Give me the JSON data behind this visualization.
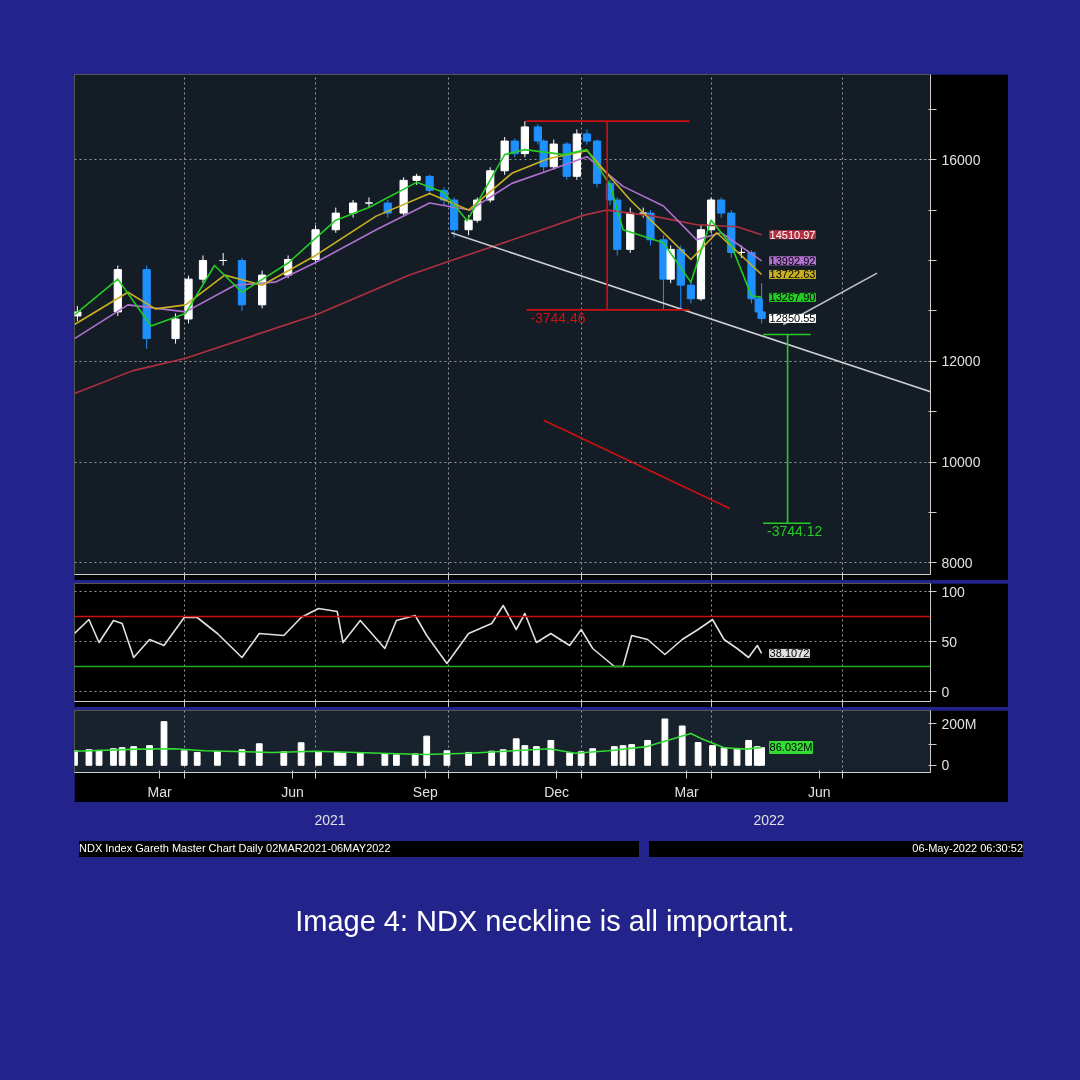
{
  "chart_data": [
    {
      "type": "candlestick",
      "xlim": [
        "2021-01-15",
        "2022-08-31"
      ],
      "ylim": [
        7770,
        17690
      ],
      "grid": true,
      "tick_labels": "y",
      "yticks": [
        8000,
        {
          "value": 9000,
          "label": null
        },
        10000,
        {
          "value": 11000,
          "label": null
        },
        12000,
        {
          "value": 13000,
          "label": null
        },
        {
          "value": 14000,
          "label": null
        },
        {
          "value": 15000,
          "label": null
        },
        16000,
        {
          "value": 17000,
          "label": null
        }
      ],
      "xticks": [
        {
          "value": "2021-04-01",
          "label": null
        },
        {
          "value": "2021-07-01",
          "label": null
        },
        {
          "value": "2021-10-01",
          "label": null
        },
        {
          "value": "2022-01-01",
          "label": null
        },
        {
          "value": "2022-04-01",
          "label": null
        },
        {
          "value": "2022-07-01",
          "label": null
        }
      ],
      "x": [
        "2021-01-17",
        "2021-02-14",
        "2021-03-06",
        "2021-03-26",
        "2021-04-04",
        "2021-04-14",
        "2021-04-28",
        "2021-05-11",
        "2021-05-25",
        "2021-06-12",
        "2021-07-01",
        "2021-07-15",
        "2021-07-27",
        "2021-08-07",
        "2021-08-20",
        "2021-08-31",
        "2021-09-09",
        "2021-09-18",
        "2021-09-28",
        "2021-10-05",
        "2021-10-15",
        "2021-10-21",
        "2021-10-30",
        "2021-11-09",
        "2021-11-16",
        "2021-11-23",
        "2021-12-02",
        "2021-12-06",
        "2021-12-13",
        "2021-12-22",
        "2021-12-29",
        "2022-01-05",
        "2022-01-12",
        "2022-01-21",
        "2022-01-26",
        "2022-02-04",
        "2022-02-13",
        "2022-02-18",
        "2022-02-27",
        "2022-03-04",
        "2022-03-11",
        "2022-03-18",
        "2022-03-25",
        "2022-04-01",
        "2022-04-08",
        "2022-04-15",
        "2022-04-22",
        "2022-04-29",
        "2022-05-04",
        "2022-05-06"
      ],
      "ohlc": [
        [
          12900,
          13100,
          12800,
          12980
        ],
        [
          12980,
          13900,
          12900,
          13820
        ],
        [
          13820,
          13900,
          12250,
          12450
        ],
        [
          12450,
          12950,
          12350,
          12840
        ],
        [
          12840,
          13700,
          12750,
          13630
        ],
        [
          13630,
          14100,
          13550,
          14000
        ],
        [
          14000,
          14150,
          13900,
          14000
        ],
        [
          14000,
          14050,
          13000,
          13120
        ],
        [
          13120,
          13800,
          13050,
          13710
        ],
        [
          13710,
          14100,
          13650,
          14020
        ],
        [
          14020,
          14700,
          13950,
          14610
        ],
        [
          14610,
          15050,
          14550,
          14940
        ],
        [
          14940,
          15200,
          14850,
          15140
        ],
        [
          15140,
          15250,
          15050,
          15140
        ],
        [
          15140,
          15200,
          14850,
          14940
        ],
        [
          14940,
          15650,
          14900,
          15590
        ],
        [
          15590,
          15720,
          15500,
          15670
        ],
        [
          15670,
          15700,
          15300,
          15390
        ],
        [
          15390,
          15450,
          15100,
          15200
        ],
        [
          15200,
          15250,
          14450,
          14610
        ],
        [
          14610,
          14900,
          14500,
          14800
        ],
        [
          14800,
          15250,
          14750,
          15200
        ],
        [
          15200,
          15850,
          15150,
          15780
        ],
        [
          15780,
          16450,
          15700,
          16370
        ],
        [
          16370,
          16420,
          16050,
          16120
        ],
        [
          16120,
          16765,
          16050,
          16650
        ],
        [
          16650,
          16700,
          16300,
          16370
        ],
        [
          16370,
          16400,
          15750,
          15860
        ],
        [
          15860,
          16400,
          15800,
          16310
        ],
        [
          16310,
          16350,
          15600,
          15670
        ],
        [
          15670,
          16600,
          15600,
          16510
        ],
        [
          16510,
          16600,
          16300,
          16370
        ],
        [
          16370,
          16400,
          15450,
          15530
        ],
        [
          15530,
          15600,
          15100,
          15200
        ],
        [
          15200,
          15250,
          14100,
          14220
        ],
        [
          14220,
          15050,
          14150,
          14940
        ],
        [
          14940,
          15050,
          14850,
          14940
        ],
        [
          14940,
          15000,
          14300,
          14410
        ],
        [
          14410,
          14500,
          13020,
          13630
        ],
        [
          13630,
          14300,
          13550,
          14220
        ],
        [
          14220,
          14300,
          13020,
          13510
        ],
        [
          13510,
          13600,
          13150,
          13240
        ],
        [
          13240,
          14700,
          13200,
          14610
        ],
        [
          14610,
          15250,
          14550,
          15200
        ],
        [
          15200,
          15250,
          14850,
          14940
        ],
        [
          14940,
          15000,
          14050,
          14160
        ],
        [
          14160,
          14300,
          14050,
          14160
        ],
        [
          14160,
          14200,
          13150,
          13240
        ],
        [
          13240,
          13300,
          12900,
          12980
        ],
        [
          12980,
          13550,
          12750,
          12850.55
        ]
      ],
      "colors": [
        "#ffffff",
        "#ffffff",
        "#1e90ff",
        "#ffffff",
        "#ffffff",
        "#ffffff",
        "#ffffff",
        "#1e90ff",
        "#ffffff",
        "#ffffff",
        "#ffffff",
        "#ffffff",
        "#ffffff",
        "#ffffff",
        "#1e90ff",
        "#ffffff",
        "#ffffff",
        "#1e90ff",
        "#1e90ff",
        "#1e90ff",
        "#ffffff",
        "#ffffff",
        "#ffffff",
        "#ffffff",
        "#1e90ff",
        "#ffffff",
        "#1e90ff",
        "#1e90ff",
        "#ffffff",
        "#1e90ff",
        "#ffffff",
        "#1e90ff",
        "#1e90ff",
        "#1e90ff",
        "#1e90ff",
        "#ffffff",
        "#ffffff",
        "#1e90ff",
        "#1e90ff",
        "#ffffff",
        "#1e90ff",
        "#1e90ff",
        "#ffffff",
        "#ffffff",
        "#1e90ff",
        "#1e90ff",
        "#ffffff",
        "#1e90ff",
        "#1e90ff",
        "#1e90ff"
      ],
      "value_labels": [
        null,
        null,
        null,
        null,
        null,
        null,
        null,
        null,
        null,
        null,
        null,
        null,
        null,
        null,
        null,
        null,
        null,
        null,
        null,
        null,
        null,
        null,
        null,
        null,
        null,
        null,
        null,
        null,
        null,
        null,
        null,
        null,
        null,
        null,
        null,
        null,
        null,
        null,
        null,
        null,
        null,
        null,
        null,
        null,
        null,
        null,
        null,
        null,
        null,
        "12850.55"
      ],
      "series": [
        {
          "type": "line",
          "color": "#b03040",
          "x": [
            "2021-01-15",
            "2021-02-24",
            "2021-04-02",
            "2021-07-01",
            "2021-09-04",
            "2021-10-03",
            "2021-12-09",
            "2022-01-03",
            "2022-01-19",
            "2022-02-20",
            "2022-03-22",
            "2022-04-19",
            "2022-05-06"
          ],
          "values": [
            11360,
            11810,
            12060,
            12920,
            13710,
            14000,
            14650,
            14900,
            15000,
            14880,
            14710,
            14670,
            14510.97
          ],
          "value_labels": [
            null,
            null,
            null,
            null,
            null,
            null,
            null,
            null,
            null,
            null,
            null,
            null,
            "14510.97"
          ]
        },
        {
          "type": "line",
          "color": "#b070d0",
          "x": [
            "2021-01-15",
            "2021-02-21",
            "2021-04-02",
            "2021-05-06",
            "2021-06-03",
            "2021-07-01",
            "2021-08-12",
            "2021-09-18",
            "2021-10-16",
            "2021-11-14",
            "2021-12-09",
            "2022-01-05",
            "2022-01-30",
            "2022-02-27",
            "2022-03-22",
            "2022-04-08",
            "2022-05-06"
          ],
          "values": [
            12450,
            13120,
            12980,
            13510,
            13570,
            13960,
            14610,
            15140,
            15000,
            15530,
            15780,
            16060,
            15470,
            15080,
            14410,
            14550,
            13992.92
          ],
          "value_labels": [
            null,
            null,
            null,
            null,
            null,
            null,
            null,
            null,
            null,
            null,
            null,
            null,
            null,
            null,
            null,
            null,
            "13992.92"
          ]
        },
        {
          "type": "line",
          "color": "#c8b020",
          "x": [
            "2021-01-15",
            "2021-02-21",
            "2021-03-12",
            "2021-04-02",
            "2021-04-29",
            "2021-05-25",
            "2021-07-01",
            "2021-08-12",
            "2021-09-18",
            "2021-10-15",
            "2021-11-14",
            "2021-12-09",
            "2022-01-05",
            "2022-02-04",
            "2022-03-18",
            "2022-04-05",
            "2022-05-06"
          ],
          "values": [
            12730,
            13370,
            13040,
            13120,
            13710,
            13510,
            14100,
            14880,
            15330,
            15000,
            15730,
            16020,
            16180,
            15200,
            14020,
            14550,
            13722.63
          ],
          "value_labels": [
            null,
            null,
            null,
            null,
            null,
            null,
            null,
            null,
            null,
            null,
            null,
            null,
            null,
            null,
            null,
            null,
            "13722.63"
          ]
        },
        {
          "type": "line",
          "color": "#22cc22",
          "x": [
            "2021-01-15",
            "2021-02-14",
            "2021-03-09",
            "2021-04-02",
            "2021-04-22",
            "2021-05-11",
            "2021-06-12",
            "2021-07-15",
            "2021-08-07",
            "2021-09-09",
            "2021-09-28",
            "2021-10-14",
            "2021-11-09",
            "2021-11-23",
            "2021-12-20",
            "2022-01-05",
            "2022-01-21",
            "2022-01-30",
            "2022-02-27",
            "2022-03-18",
            "2022-04-01",
            "2022-04-15",
            "2022-04-29",
            "2022-05-06"
          ],
          "values": [
            12920,
            13630,
            12700,
            12950,
            13900,
            13370,
            13950,
            14800,
            15050,
            15550,
            15350,
            14790,
            16100,
            16200,
            16100,
            16200,
            15500,
            14610,
            14350,
            13570,
            14800,
            14300,
            13300,
            13267.9
          ],
          "value_labels": [
            null,
            null,
            null,
            null,
            null,
            null,
            null,
            null,
            null,
            null,
            null,
            null,
            null,
            null,
            null,
            null,
            null,
            null,
            null,
            null,
            null,
            null,
            null,
            "13267.90"
          ]
        },
        {
          "type": "line",
          "color": "#d0d0d0",
          "x": [
            "2021-10-03",
            "2022-08-31"
          ],
          "values": [
            14550,
            11394
          ]
        },
        {
          "type": "line",
          "color": "#cc1111",
          "x": [
            "2021-11-24",
            "2022-03-17"
          ],
          "values": [
            16765,
            16765
          ]
        },
        {
          "type": "line",
          "color": "#cc1111",
          "x": [
            "2022-01-19",
            "2022-01-19"
          ],
          "values": [
            16765,
            13020.54
          ]
        },
        {
          "type": "line",
          "color": "#cc1111",
          "x": [
            "2021-11-24",
            "2022-03-17"
          ],
          "values": [
            13020.54,
            13020.54
          ]
        },
        {
          "type": "line",
          "color": "#22cc22",
          "x": [
            "2022-05-07",
            "2022-06-09"
          ],
          "values": [
            12531,
            12531
          ]
        },
        {
          "type": "line",
          "color": "#22cc22",
          "x": [
            "2022-05-24",
            "2022-05-24"
          ],
          "values": [
            12531,
            8786.88
          ]
        },
        {
          "type": "line",
          "color": "#22cc22",
          "x": [
            "2022-05-07",
            "2022-06-09"
          ],
          "values": [
            8786.88,
            8786.88
          ]
        },
        {
          "type": "line",
          "color": "#cc1111",
          "x": [
            "2021-12-06",
            "2022-04-14"
          ],
          "values": [
            10830,
            9080
          ]
        },
        {
          "type": "line",
          "color": "#c0c0c0",
          "x": [
            "2022-07-25",
            "2022-05-21"
          ],
          "values": [
            13750,
            12730
          ]
        }
      ],
      "annotations": [
        {
          "text": "-3744.46",
          "x": "2021-11-24",
          "y": 13020.54
        },
        {
          "text": "-3744.12",
          "x": "2022-05-07",
          "y": 8786.88
        }
      ]
    },
    {
      "type": "line",
      "xlim": [
        "2021-01-15",
        "2022-08-31"
      ],
      "ylim": [
        -10,
        108
      ],
      "yticks": [
        0,
        50,
        100
      ],
      "grid": true,
      "tick_labels": "y",
      "xticks": [
        {
          "value": "2021-04-01",
          "label": null
        },
        {
          "value": "2021-07-01",
          "label": null
        },
        {
          "value": "2021-10-01",
          "label": null
        },
        {
          "value": "2022-01-01",
          "label": null
        },
        {
          "value": "2022-04-01",
          "label": null
        },
        {
          "value": "2022-07-01",
          "label": null
        }
      ],
      "x": [
        "2021-01-15",
        "2021-01-25",
        "2021-02-01",
        "2021-02-11",
        "2021-02-17",
        "2021-02-25",
        "2021-03-08",
        "2021-03-18",
        "2021-04-01",
        "2021-04-10",
        "2021-04-24",
        "2021-05-11",
        "2021-05-23",
        "2021-06-09",
        "2021-06-21",
        "2021-07-03",
        "2021-07-16",
        "2021-07-20",
        "2021-08-01",
        "2021-08-18",
        "2021-08-26",
        "2021-09-08",
        "2021-09-16",
        "2021-09-30",
        "2021-10-15",
        "2021-10-31",
        "2021-11-08",
        "2021-11-17",
        "2021-11-23",
        "2021-12-01",
        "2021-12-11",
        "2021-12-24",
        "2022-01-01",
        "2022-01-09",
        "2022-01-24",
        "2022-01-30",
        "2022-02-05",
        "2022-02-16",
        "2022-02-28",
        "2022-03-12",
        "2022-03-23",
        "2022-04-02",
        "2022-04-10",
        "2022-04-19",
        "2022-04-27",
        "2022-05-03",
        "2022-05-06"
      ],
      "ref_lines": [
        {
          "axis": "y",
          "value": 75,
          "color": "#cc1111"
        },
        {
          "axis": "y",
          "value": 25,
          "color": "#22aa22"
        }
      ],
      "series": [
        {
          "color": "#e0e0e0",
          "values": [
            58,
            72,
            49,
            71,
            68,
            34,
            52,
            46,
            74,
            74,
            58,
            34,
            58,
            56,
            74,
            83,
            80,
            49,
            71,
            43,
            71,
            76,
            56,
            28,
            58,
            68,
            86,
            62,
            78,
            49,
            58,
            46,
            62,
            43,
            25,
            25,
            56,
            52,
            37,
            52,
            62,
            72,
            52,
            43,
            34,
            46,
            38.1072
          ],
          "value_labels": [
            null,
            null,
            null,
            null,
            null,
            null,
            null,
            null,
            null,
            null,
            null,
            null,
            null,
            null,
            null,
            null,
            null,
            null,
            null,
            null,
            null,
            null,
            null,
            null,
            null,
            null,
            null,
            null,
            null,
            null,
            null,
            null,
            null,
            null,
            null,
            null,
            null,
            null,
            null,
            null,
            null,
            null,
            null,
            null,
            null,
            null,
            "38.1072"
          ]
        }
      ]
    },
    {
      "type": "bar",
      "xlim": [
        "2021-01-15",
        "2022-08-31"
      ],
      "ylim": [
        -35,
        265
      ],
      "yticks": [
        {
          "value": 0,
          "label": "0"
        },
        {
          "value": 100,
          "label": null
        },
        {
          "value": 200,
          "label": "200M"
        }
      ],
      "grid": "x",
      "xticks": [
        {
          "value": "2021-03-15",
          "label": "Mar"
        },
        {
          "value": "2021-04-01",
          "label": null
        },
        {
          "value": "2021-06-15",
          "label": "Jun"
        },
        {
          "value": "2021-07-01",
          "label": null
        },
        {
          "value": "2021-09-15",
          "label": "Sep"
        },
        {
          "value": "2021-10-01",
          "label": null
        },
        {
          "value": "2021-12-15",
          "label": "Dec"
        },
        {
          "value": "2022-01-01",
          "label": null
        },
        {
          "value": "2022-03-15",
          "label": "Mar"
        },
        {
          "value": "2022-04-01",
          "label": null
        },
        {
          "value": "2022-06-15",
          "label": "Jun"
        },
        {
          "value": "2022-07-01",
          "label": null
        }
      ],
      "x": [
        "2021-01-15",
        "2021-01-25",
        "2021-02-01",
        "2021-02-11",
        "2021-02-17",
        "2021-02-25",
        "2021-03-08",
        "2021-03-18",
        "2021-04-01",
        "2021-04-10",
        "2021-04-24",
        "2021-05-11",
        "2021-05-23",
        "2021-06-09",
        "2021-06-21",
        "2021-07-03",
        "2021-07-16",
        "2021-07-20",
        "2021-08-01",
        "2021-08-18",
        "2021-08-26",
        "2021-09-08",
        "2021-09-16",
        "2021-09-30",
        "2021-10-15",
        "2021-10-31",
        "2021-11-08",
        "2021-11-17",
        "2021-11-23",
        "2021-12-01",
        "2021-12-11",
        "2021-12-24",
        "2022-01-01",
        "2022-01-09",
        "2022-01-24",
        "2022-01-30",
        "2022-02-05",
        "2022-02-16",
        "2022-02-28",
        "2022-03-12",
        "2022-03-23",
        "2022-04-02",
        "2022-04-10",
        "2022-04-19",
        "2022-04-27",
        "2022-05-03",
        "2022-05-06"
      ],
      "series": [
        {
          "type": "bar",
          "color": "#ffffff",
          "values": [
            70,
            75,
            72,
            80,
            85,
            90,
            95,
            211,
            70,
            62,
            66,
            75,
            104,
            65,
            109,
            65,
            62,
            58,
            60,
            55,
            50,
            55,
            141,
            70,
            62,
            68,
            75,
            128,
            95,
            90,
            120,
            60,
            65,
            80,
            90,
            95,
            100,
            120,
            224,
            190,
            110,
            95,
            85,
            80,
            120,
            90,
            85
          ]
        },
        {
          "type": "line",
          "color": "#33dd33",
          "x": [
            "2021-01-15",
            "2021-03-01",
            "2021-03-25",
            "2021-04-15",
            "2021-06-01",
            "2021-07-01",
            "2021-08-15",
            "2021-09-15",
            "2021-10-15",
            "2021-11-15",
            "2021-12-10",
            "2021-12-28",
            "2022-01-20",
            "2022-02-15",
            "2022-03-18",
            "2022-03-25",
            "2022-04-10",
            "2022-04-25",
            "2022-05-06"
          ],
          "values": [
            68,
            78,
            80,
            70,
            62,
            68,
            58,
            52,
            58,
            70,
            80,
            58,
            70,
            90,
            154,
            130,
            85,
            78,
            86.032
          ],
          "value_labels": [
            null,
            null,
            null,
            null,
            null,
            null,
            null,
            null,
            null,
            null,
            null,
            null,
            null,
            null,
            null,
            null,
            null,
            null,
            "86.032M"
          ]
        }
      ],
      "annotations": [
        "2021",
        "2022",
        "NDX Index Gareth Master Chart  Daily 02MAR2021-06MAY2022",
        "06-May-2022 06:30:52",
        "Image 4: NDX neckline is all important."
      ]
    }
  ]
}
